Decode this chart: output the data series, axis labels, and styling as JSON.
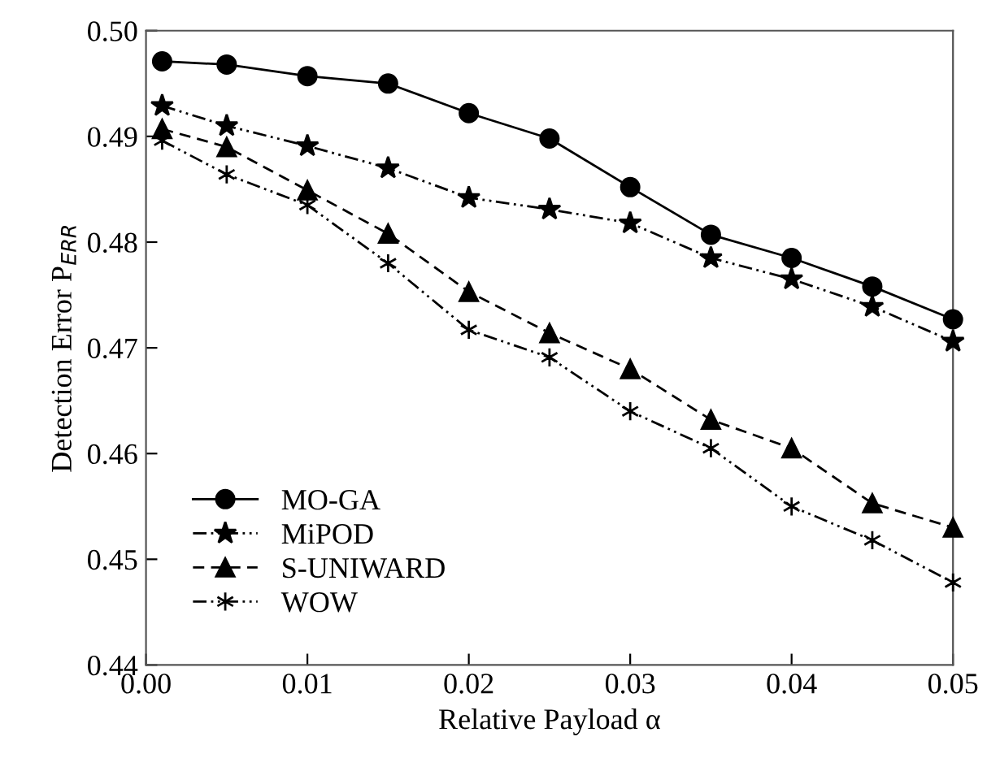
{
  "chart_data": {
    "type": "line",
    "xlabel": "Relative Payload α",
    "ylabel": "Detection Error P$_{ERR}$",
    "x": [
      0.001,
      0.005,
      0.01,
      0.015,
      0.02,
      0.025,
      0.03,
      0.035,
      0.04,
      0.045,
      0.05
    ],
    "series": [
      {
        "name": "MO-GA",
        "color": "#000000",
        "marker": "circle",
        "line_style": "solid",
        "values": [
          0.4971,
          0.4968,
          0.4957,
          0.495,
          0.4922,
          0.4898,
          0.4852,
          0.4807,
          0.4785,
          0.4758,
          0.4727
        ]
      },
      {
        "name": "MiPOD",
        "color": "#000000",
        "marker": "star",
        "line_style": "dotted",
        "values": [
          0.4929,
          0.491,
          0.4891,
          0.487,
          0.4842,
          0.4831,
          0.4818,
          0.4785,
          0.4765,
          0.4739,
          0.4706
        ]
      },
      {
        "name": "S-UNIWARD",
        "color": "#000000",
        "marker": "triangle",
        "line_style": "dashed",
        "values": [
          0.4907,
          0.489,
          0.4849,
          0.4808,
          0.4753,
          0.4714,
          0.468,
          0.4632,
          0.4605,
          0.4553,
          0.453
        ]
      },
      {
        "name": "WOW",
        "color": "#000000",
        "marker": "cross",
        "line_style": "dotted",
        "values": [
          0.4896,
          0.4864,
          0.4835,
          0.478,
          0.4717,
          0.4691,
          0.464,
          0.4605,
          0.455,
          0.4518,
          0.4478
        ]
      }
    ],
    "xlim": [
      0,
      0.05
    ],
    "xticks": [
      {
        "value": 0,
        "label": "0.00"
      },
      0.01,
      0.02,
      0.03,
      0.04,
      0.05
    ],
    "ylim": [
      0.44,
      0.5
    ],
    "yticks": [
      0.44,
      0.45,
      0.46,
      0.47,
      0.48,
      0.49,
      {
        "value": 0.5,
        "label": "0.50"
      }
    ],
    "grid": false,
    "legend": "bottom left"
  }
}
